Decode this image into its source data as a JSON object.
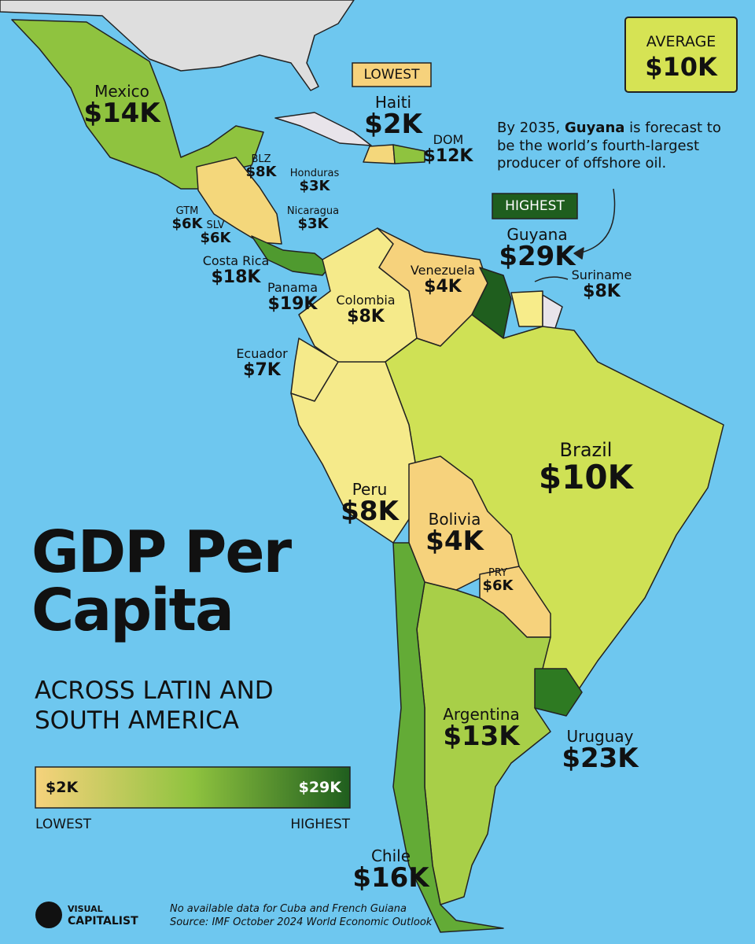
{
  "title": "GDP Per Capita",
  "subtitle": "ACROSS LATIN AND SOUTH AMERICA",
  "average": {
    "label": "AVERAGE",
    "value": "$10K"
  },
  "badges": {
    "lowest": "LOWEST",
    "highest": "HIGHEST"
  },
  "note": {
    "before": "By 2035, ",
    "bold": "Guyana",
    "after": " is forecast to be the world’s fourth-largest producer of offshore oil."
  },
  "countries": [
    {
      "name": "Mexico",
      "value": "$14K"
    },
    {
      "name": "BLZ",
      "value": "$8K"
    },
    {
      "name": "Honduras",
      "value": "$3K"
    },
    {
      "name": "GTM",
      "value": "$6K"
    },
    {
      "name": "SLV",
      "value": "$6K"
    },
    {
      "name": "Nicaragua",
      "value": "$3K"
    },
    {
      "name": "Costa Rica",
      "value": "$18K"
    },
    {
      "name": "Panama",
      "value": "$19K"
    },
    {
      "name": "Haiti",
      "value": "$2K"
    },
    {
      "name": "DOM",
      "value": "$12K"
    },
    {
      "name": "Venezuela",
      "value": "$4K"
    },
    {
      "name": "Colombia",
      "value": "$8K"
    },
    {
      "name": "Ecuador",
      "value": "$7K"
    },
    {
      "name": "Guyana",
      "value": "$29K"
    },
    {
      "name": "Suriname",
      "value": "$8K"
    },
    {
      "name": "Brazil",
      "value": "$10K"
    },
    {
      "name": "Peru",
      "value": "$8K"
    },
    {
      "name": "Bolivia",
      "value": "$4K"
    },
    {
      "name": "PRY",
      "value": "$6K"
    },
    {
      "name": "Argentina",
      "value": "$13K"
    },
    {
      "name": "Uruguay",
      "value": "$23K"
    },
    {
      "name": "Chile",
      "value": "$16K"
    }
  ],
  "legend": {
    "min": "$2K",
    "max": "$29K",
    "low_label": "LOWEST",
    "high_label": "HIGHEST"
  },
  "footer": {
    "brand_top": "VISUAL",
    "brand_bottom": "CAPITALIST",
    "note": "No available data for Cuba and French Guiana",
    "source": "Source: IMF October 2024 World Economic Outlook"
  }
}
